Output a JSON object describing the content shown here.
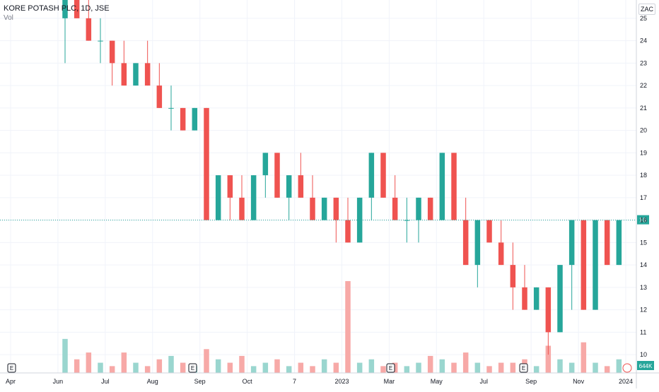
{
  "legend": {
    "symbol": "KORE POTASH PLC, 1D, JSE",
    "volume_label": "Vol"
  },
  "currency": "ZAC",
  "colors": {
    "up": "#26a69a",
    "down": "#ef5350",
    "grid": "#f0f3fa",
    "axis_text": "#131722",
    "price_line": "#26a69a",
    "vol_up": "#9ad6cf",
    "vol_down": "#f7a9a7"
  },
  "chart_data": {
    "type": "candlestick",
    "title": "KORE POTASH PLC, 1D, JSE",
    "ylabel": "",
    "ylim": [
      9.5,
      25.5
    ],
    "y_ticks": [
      10,
      11,
      12,
      13,
      14,
      15,
      16,
      17,
      18,
      19,
      20,
      21,
      22,
      23,
      24,
      25
    ],
    "x_ticks": [
      "Apr",
      "Jun",
      "Jul",
      "Aug",
      "Sep",
      "Oct",
      "7",
      "2023",
      "Mar",
      "May",
      "Jul",
      "Sep",
      "Nov",
      "2024"
    ],
    "last_price": 16,
    "last_volume_label": "644K",
    "events": [
      "E",
      "E",
      "E",
      "E"
    ],
    "ohlc": [
      [
        25,
        26,
        23,
        26
      ],
      [
        26,
        26,
        25,
        25
      ],
      [
        25,
        26,
        24,
        24
      ],
      [
        24,
        25,
        23,
        24
      ],
      [
        24,
        24,
        22,
        23
      ],
      [
        23,
        24,
        22,
        22
      ],
      [
        22,
        23,
        22,
        23
      ],
      [
        23,
        24,
        22,
        22
      ],
      [
        22,
        23,
        21,
        21
      ],
      [
        21,
        22,
        20,
        21
      ],
      [
        21,
        21,
        20,
        20
      ],
      [
        20,
        21,
        20,
        21
      ],
      [
        21,
        21,
        16,
        16
      ],
      [
        16,
        18,
        16,
        18
      ],
      [
        18,
        18,
        16,
        17
      ],
      [
        17,
        18,
        16,
        16
      ],
      [
        16,
        18,
        16,
        18
      ],
      [
        18,
        19,
        17,
        19
      ],
      [
        19,
        19,
        17,
        17
      ],
      [
        17,
        18,
        16,
        18
      ],
      [
        18,
        19,
        17,
        17
      ],
      [
        17,
        18,
        16,
        16
      ],
      [
        16,
        17,
        16,
        17
      ],
      [
        17,
        17,
        15,
        16
      ],
      [
        16,
        17,
        15,
        15
      ],
      [
        15,
        17,
        15,
        17
      ],
      [
        17,
        19,
        16,
        19
      ],
      [
        19,
        19,
        17,
        17
      ],
      [
        17,
        18,
        16,
        16
      ],
      [
        16,
        17,
        15,
        16
      ],
      [
        16,
        17,
        15,
        17
      ],
      [
        17,
        17,
        16,
        16
      ],
      [
        16,
        19,
        16,
        19
      ],
      [
        19,
        19,
        16,
        16
      ],
      [
        16,
        17,
        14,
        14
      ],
      [
        14,
        16,
        13,
        16
      ],
      [
        16,
        16,
        15,
        15
      ],
      [
        15,
        16,
        14,
        14
      ],
      [
        14,
        15,
        12,
        13
      ],
      [
        13,
        14,
        12,
        12
      ],
      [
        12,
        13,
        12,
        13
      ],
      [
        13,
        13,
        10,
        11
      ],
      [
        11,
        14,
        11,
        14
      ],
      [
        14,
        16,
        12,
        16
      ],
      [
        16,
        16,
        12,
        12
      ],
      [
        12,
        16,
        12,
        16
      ],
      [
        16,
        16,
        14,
        14
      ],
      [
        14,
        16,
        14,
        16
      ]
    ],
    "volume": [
      1.0,
      0.4,
      0.6,
      0.3,
      0.2,
      0.6,
      0.3,
      0.2,
      0.4,
      0.5,
      0.3,
      0.2,
      0.7,
      0.4,
      0.3,
      0.5,
      0.2,
      0.3,
      0.4,
      0.2,
      0.3,
      0.2,
      0.4,
      0.3,
      2.7,
      0.3,
      0.4,
      0.2,
      0.3,
      0.2,
      0.3,
      0.5,
      0.4,
      0.3,
      0.6,
      0.3,
      0.2,
      0.3,
      0.3,
      0.4,
      0.2,
      0.8,
      0.4,
      0.3,
      0.9,
      0.3,
      0.2,
      0.4
    ]
  }
}
